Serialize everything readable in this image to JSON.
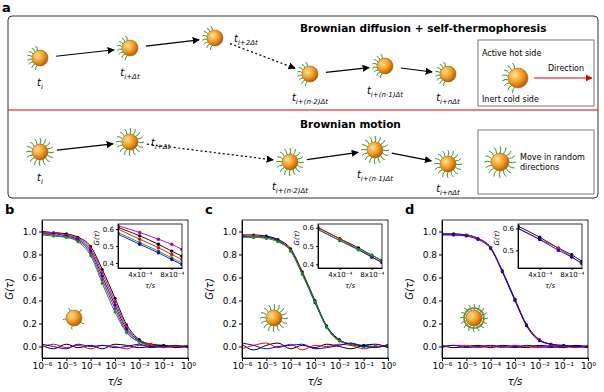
{
  "diagram": {
    "panel": "a",
    "top": {
      "title": "Brownian diffusion + self-thermophoresis",
      "steps": [
        {
          "main": "t",
          "sub": "i"
        },
        {
          "main": "t",
          "sub": "i+Δt"
        },
        {
          "main": "t",
          "sub": "i+2Δt"
        },
        {
          "main": "t",
          "sub": "i+(n-2)Δt"
        },
        {
          "main": "t",
          "sub": "i+(n-1)Δt"
        },
        {
          "main": "t",
          "sub": "i+nΔt"
        }
      ],
      "hot": "Active hot side",
      "direction": "Direction",
      "cold": "Inert cold side"
    },
    "bottom": {
      "title": "Brownian motion",
      "steps": [
        {
          "main": "t",
          "sub": "i"
        },
        {
          "main": "t",
          "sub": "i+Δt"
        },
        {
          "main": "t",
          "sub": "i+(n-2)Δt"
        },
        {
          "main": "t",
          "sub": "i+(n-1)Δt"
        },
        {
          "main": "t",
          "sub": "i+nΔt"
        }
      ],
      "note": "Move in random directions"
    }
  },
  "chart_data": [
    {
      "panel": "b",
      "type": "line",
      "log": "x",
      "xlabel": "τ/s",
      "ylabel": "G(τ)",
      "xlim": [
        1e-06,
        1
      ],
      "ylim": [
        -0.1,
        1.1
      ],
      "xticks": [
        {
          "value": 1e-06,
          "label": "10⁻⁶"
        },
        {
          "value": 1e-05,
          "label": "10⁻⁵"
        },
        {
          "value": 0.0001,
          "label": "10⁻⁴"
        },
        {
          "value": 0.001,
          "label": "10⁻³"
        },
        {
          "value": 0.01,
          "label": "10⁻²"
        },
        {
          "value": 0.1,
          "label": "10⁻¹"
        },
        {
          "value": 1,
          "label": "10⁰"
        }
      ],
      "yticks": [
        {
          "value": 0,
          "label": "0.0"
        },
        0.2,
        0.4,
        0.6,
        0.8,
        {
          "value": 1,
          "label": "1.0"
        }
      ],
      "x": [
        1e-06,
        3e-06,
        1e-05,
        3e-05,
        0.0001,
        0.0003,
        0.001,
        0.003,
        0.01,
        0.03,
        0.1,
        0.3,
        1
      ],
      "series": [
        {
          "color": "#000000",
          "marker": "circle",
          "values": [
            1.0,
            0.99,
            0.98,
            0.95,
            0.87,
            0.67,
            0.42,
            0.19,
            0.06,
            0.02,
            0.01,
            0.0,
            0.0
          ]
        },
        {
          "color": "#ff0000",
          "marker": "circle",
          "values": [
            0.99,
            0.99,
            0.97,
            0.94,
            0.85,
            0.64,
            0.39,
            0.17,
            0.05,
            0.02,
            0.0,
            0.0,
            0.0
          ]
        },
        {
          "color": "#0000ff",
          "marker": "circle",
          "values": [
            0.98,
            0.98,
            0.96,
            0.93,
            0.83,
            0.61,
            0.36,
            0.15,
            0.05,
            0.01,
            0.0,
            0.0,
            0.0
          ]
        },
        {
          "color": "#b000b0",
          "marker": "circle",
          "values": [
            0.98,
            0.97,
            0.95,
            0.92,
            0.81,
            0.58,
            0.33,
            0.13,
            0.04,
            0.01,
            0.0,
            0.0,
            0.0
          ]
        },
        {
          "color": "#00a000",
          "marker": "circle",
          "values": [
            0.97,
            0.96,
            0.95,
            0.91,
            0.79,
            0.55,
            0.3,
            0.12,
            0.04,
            0.01,
            0.0,
            0.0,
            0.0
          ]
        },
        {
          "color": "#000000",
          "marker": "none",
          "values": [
            0.01,
            -0.02,
            0.02,
            -0.01,
            0.01,
            -0.02,
            0.02,
            0.01,
            -0.01,
            0.0,
            0.01,
            -0.01,
            0.0
          ]
        },
        {
          "color": "#ff0000",
          "marker": "none",
          "values": [
            -0.01,
            0.02,
            -0.01,
            0.01,
            -0.02,
            0.01,
            0.0,
            -0.02,
            0.01,
            0.01,
            -0.01,
            0.0,
            0.01
          ]
        },
        {
          "color": "#0000ff",
          "marker": "none",
          "values": [
            0.02,
            0.0,
            -0.02,
            0.02,
            0.0,
            0.01,
            -0.01,
            0.0,
            0.02,
            -0.01,
            0.0,
            0.01,
            -0.01
          ]
        }
      ],
      "inset": {
        "type": "line",
        "log": "x",
        "xlabel": "τ/s",
        "ylabel": "G(τ)",
        "xlim": [
          0.00025,
          0.001
        ],
        "ylim": [
          0.37,
          0.63
        ],
        "xticks": [
          {
            "value": 0.0004,
            "label": "4x10⁻⁴"
          },
          {
            "value": 0.0008,
            "label": "8x10⁻⁴"
          }
        ],
        "yticks": [
          0.4,
          0.5,
          0.6
        ],
        "x": [
          0.00025,
          0.0004,
          0.0006,
          0.0008,
          0.001
        ],
        "series": [
          {
            "color": "#b000b0",
            "marker": "circle",
            "values": [
              0.62,
              0.58,
              0.54,
              0.51,
              0.48
            ]
          },
          {
            "color": "#000000",
            "marker": "circle",
            "values": [
              0.61,
              0.56,
              0.51,
              0.47,
              0.44
            ]
          },
          {
            "color": "#ff0000",
            "marker": "circle",
            "values": [
              0.6,
              0.54,
              0.49,
              0.45,
              0.42
            ]
          },
          {
            "color": "#00a000",
            "marker": "circle",
            "values": [
              0.58,
              0.52,
              0.47,
              0.43,
              0.4
            ]
          },
          {
            "color": "#0000ff",
            "marker": "circle",
            "values": [
              0.57,
              0.51,
              0.46,
              0.42,
              0.39
            ]
          }
        ]
      }
    },
    {
      "panel": "c",
      "type": "line",
      "log": "x",
      "xlabel": "τ/s",
      "ylabel": "G(τ)",
      "xlim": [
        1e-06,
        1
      ],
      "ylim": [
        -0.1,
        1.1
      ],
      "xticks": [
        {
          "value": 1e-06,
          "label": "10⁻⁶"
        },
        {
          "value": 1e-05,
          "label": "10⁻⁵"
        },
        {
          "value": 0.0001,
          "label": "10⁻⁴"
        },
        {
          "value": 0.001,
          "label": "10⁻³"
        },
        {
          "value": 0.01,
          "label": "10⁻²"
        },
        {
          "value": 0.1,
          "label": "10⁻¹"
        },
        {
          "value": 1,
          "label": "10⁰"
        }
      ],
      "yticks": [
        {
          "value": 0,
          "label": "0.0"
        },
        0.2,
        0.4,
        0.6,
        0.8,
        {
          "value": 1,
          "label": "1.0"
        }
      ],
      "x": [
        1e-06,
        3e-06,
        1e-05,
        3e-05,
        0.0001,
        0.0003,
        0.001,
        0.003,
        0.01,
        0.03,
        0.1,
        0.3,
        1
      ],
      "series": [
        {
          "color": "#000000",
          "marker": "circle",
          "values": [
            0.97,
            0.97,
            0.96,
            0.93,
            0.85,
            0.65,
            0.4,
            0.18,
            0.06,
            0.02,
            0.01,
            0.0,
            0.0
          ]
        },
        {
          "color": "#ff0000",
          "marker": "circle",
          "values": [
            0.96,
            0.96,
            0.95,
            0.92,
            0.84,
            0.64,
            0.39,
            0.17,
            0.05,
            0.02,
            0.0,
            0.0,
            0.0
          ]
        },
        {
          "color": "#0000ff",
          "marker": "circle",
          "values": [
            0.96,
            0.95,
            0.95,
            0.92,
            0.83,
            0.63,
            0.38,
            0.17,
            0.05,
            0.02,
            0.0,
            0.0,
            0.0
          ]
        },
        {
          "color": "#00a000",
          "marker": "circle",
          "values": [
            0.95,
            0.95,
            0.94,
            0.91,
            0.83,
            0.63,
            0.39,
            0.17,
            0.05,
            0.02,
            0.0,
            0.0,
            0.0
          ]
        },
        {
          "color": "#000000",
          "marker": "none",
          "values": [
            0.02,
            -0.03,
            0.01,
            0.03,
            -0.02,
            0.01,
            -0.01,
            0.02,
            0.0,
            -0.02,
            0.01,
            0.02,
            -0.01
          ]
        },
        {
          "color": "#ff0000",
          "marker": "none",
          "values": [
            -0.02,
            0.01,
            0.03,
            -0.01,
            0.02,
            -0.03,
            0.01,
            0.0,
            0.02,
            0.01,
            -0.02,
            0.0,
            0.01
          ]
        },
        {
          "color": "#0000ff",
          "marker": "none",
          "values": [
            0.03,
            0.01,
            -0.02,
            0.0,
            0.01,
            0.02,
            -0.02,
            -0.01,
            0.01,
            0.03,
            0.0,
            -0.01,
            0.02
          ]
        }
      ],
      "inset": {
        "type": "line",
        "log": "x",
        "xlabel": "τ/s",
        "ylabel": "G(τ)",
        "xlim": [
          0.00025,
          0.001
        ],
        "ylim": [
          0.38,
          0.62
        ],
        "xticks": [
          {
            "value": 0.0004,
            "label": "4x10⁻⁴"
          },
          {
            "value": 0.0008,
            "label": "8x10⁻⁴"
          }
        ],
        "yticks": [
          0.4,
          0.5,
          0.6
        ],
        "x": [
          0.00025,
          0.0004,
          0.0006,
          0.0008,
          0.001
        ],
        "series": [
          {
            "color": "#000000",
            "marker": "circle",
            "values": [
              0.6,
              0.54,
              0.49,
              0.45,
              0.42
            ]
          },
          {
            "color": "#ff0000",
            "marker": "circle",
            "values": [
              0.6,
              0.54,
              0.48,
              0.44,
              0.41
            ]
          },
          {
            "color": "#0000ff",
            "marker": "circle",
            "values": [
              0.59,
              0.53,
              0.48,
              0.44,
              0.41
            ]
          },
          {
            "color": "#00a000",
            "marker": "circle",
            "values": [
              0.59,
              0.53,
              0.48,
              0.45,
              0.42
            ]
          }
        ]
      }
    },
    {
      "panel": "d",
      "type": "line",
      "log": "x",
      "xlabel": "τ/s",
      "ylabel": "G(τ)",
      "xlim": [
        1e-06,
        1
      ],
      "ylim": [
        -0.1,
        1.1
      ],
      "xticks": [
        {
          "value": 1e-06,
          "label": "10⁻⁶"
        },
        {
          "value": 1e-05,
          "label": "10⁻⁵"
        },
        {
          "value": 0.0001,
          "label": "10⁻⁴"
        },
        {
          "value": 0.001,
          "label": "10⁻³"
        },
        {
          "value": 0.01,
          "label": "10⁻²"
        },
        {
          "value": 0.1,
          "label": "10⁻¹"
        },
        {
          "value": 1,
          "label": "10⁰"
        }
      ],
      "yticks": [
        {
          "value": 0,
          "label": "0.0"
        },
        0.2,
        0.4,
        0.6,
        0.8,
        {
          "value": 1,
          "label": "1.0"
        }
      ],
      "x": [
        1e-06,
        3e-06,
        1e-05,
        3e-05,
        0.0001,
        0.0003,
        0.001,
        0.003,
        0.01,
        0.03,
        0.1,
        0.3,
        1
      ],
      "series": [
        {
          "color": "#000000",
          "marker": "circle",
          "values": [
            0.98,
            0.98,
            0.97,
            0.94,
            0.86,
            0.66,
            0.41,
            0.19,
            0.06,
            0.02,
            0.01,
            0.0,
            0.0
          ]
        },
        {
          "color": "#ff0000",
          "marker": "circle",
          "values": [
            0.98,
            0.97,
            0.97,
            0.94,
            0.86,
            0.65,
            0.4,
            0.18,
            0.06,
            0.02,
            0.0,
            0.0,
            0.0
          ]
        },
        {
          "color": "#0000ff",
          "marker": "circle",
          "values": [
            0.97,
            0.97,
            0.96,
            0.93,
            0.85,
            0.65,
            0.4,
            0.18,
            0.05,
            0.02,
            0.0,
            0.0,
            0.0
          ]
        },
        {
          "color": "#000000",
          "marker": "none",
          "values": [
            0.01,
            -0.01,
            0.0,
            0.01,
            -0.01,
            0.01,
            0.0,
            -0.01,
            0.01,
            0.0,
            -0.01,
            0.01,
            0.0
          ]
        },
        {
          "color": "#ff0000",
          "marker": "none",
          "values": [
            -0.01,
            0.01,
            0.01,
            -0.01,
            0.0,
            -0.01,
            0.01,
            0.0,
            -0.01,
            0.01,
            0.0,
            -0.01,
            0.01
          ]
        },
        {
          "color": "#0000ff",
          "marker": "none",
          "values": [
            0.0,
            0.01,
            -0.01,
            0.0,
            0.01,
            0.0,
            -0.01,
            0.01,
            0.0,
            -0.01,
            0.01,
            0.0,
            -0.01
          ]
        }
      ],
      "inset": {
        "type": "line",
        "log": "x",
        "xlabel": "τ/s",
        "ylabel": "G(τ)",
        "xlim": [
          0.00025,
          0.001
        ],
        "ylim": [
          0.42,
          0.62
        ],
        "xticks": [
          {
            "value": 0.0004,
            "label": "4x10⁻⁴"
          },
          {
            "value": 0.0008,
            "label": "8x10⁻⁴"
          }
        ],
        "yticks": [
          0.5,
          0.6
        ],
        "x": [
          0.00025,
          0.0004,
          0.0006,
          0.0008,
          0.001
        ],
        "series": [
          {
            "color": "#000000",
            "marker": "circle",
            "values": [
              0.61,
              0.56,
              0.51,
              0.48,
              0.45
            ]
          },
          {
            "color": "#ff0000",
            "marker": "circle",
            "values": [
              0.6,
              0.55,
              0.51,
              0.47,
              0.44
            ]
          },
          {
            "color": "#0000ff",
            "marker": "circle",
            "values": [
              0.6,
              0.55,
              0.5,
              0.47,
              0.44
            ]
          }
        ]
      }
    }
  ]
}
